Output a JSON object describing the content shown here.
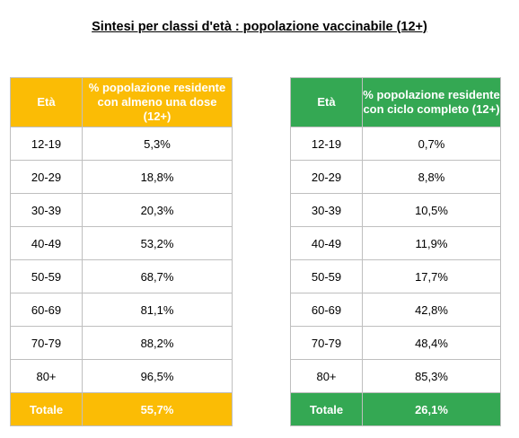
{
  "title": "Sintesi per classi d'età : popolazione vaccinabile (12+)",
  "tables": [
    {
      "col1_header": "Età",
      "col2_header": "% popolazione residente con almeno una dose (12+)",
      "header_color": "#fbbc05",
      "rows": [
        {
          "age": "12-19",
          "value": "5,3%"
        },
        {
          "age": "20-29",
          "value": "18,8%"
        },
        {
          "age": "30-39",
          "value": "20,3%"
        },
        {
          "age": "40-49",
          "value": "53,2%"
        },
        {
          "age": "50-59",
          "value": "68,7%"
        },
        {
          "age": "60-69",
          "value": "81,1%"
        },
        {
          "age": "70-79",
          "value": "88,2%"
        },
        {
          "age": "80+",
          "value": "96,5%"
        }
      ],
      "total_label": "Totale",
      "total_value": "55,7%"
    },
    {
      "col1_header": "Età",
      "col2_header": "% popolazione residente con ciclo completo (12+)",
      "header_color": "#34a853",
      "rows": [
        {
          "age": "12-19",
          "value": "0,7%"
        },
        {
          "age": "20-29",
          "value": "8,8%"
        },
        {
          "age": "30-39",
          "value": "10,5%"
        },
        {
          "age": "40-49",
          "value": "11,9%"
        },
        {
          "age": "50-59",
          "value": "17,7%"
        },
        {
          "age": "60-69",
          "value": "42,8%"
        },
        {
          "age": "70-79",
          "value": "48,4%"
        },
        {
          "age": "80+",
          "value": "85,3%"
        }
      ],
      "total_label": "Totale",
      "total_value": "26,1%"
    }
  ]
}
